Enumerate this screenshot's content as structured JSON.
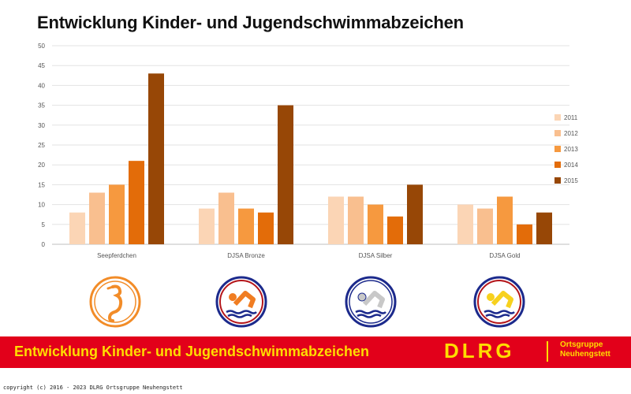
{
  "title": "Entwicklung Kinder- und Jugendschwimmabzeichen",
  "chart_data": {
    "type": "bar",
    "title": "Entwicklung Kinder- und Jugendschwimmabzeichen",
    "categories": [
      "Seepferdchen",
      "DJSA Bronze",
      "DJSA Silber",
      "DJSA Gold"
    ],
    "series": [
      {
        "name": "2011",
        "color": "#fbd5b5",
        "values": [
          8,
          9,
          12,
          10
        ]
      },
      {
        "name": "2012",
        "color": "#f9bf8f",
        "values": [
          13,
          13,
          12,
          9
        ]
      },
      {
        "name": "2013",
        "color": "#f6993f",
        "values": [
          15,
          9,
          10,
          12
        ]
      },
      {
        "name": "2014",
        "color": "#e36c09",
        "values": [
          21,
          8,
          7,
          5
        ]
      },
      {
        "name": "2015",
        "color": "#974706",
        "values": [
          43,
          35,
          15,
          8
        ]
      }
    ],
    "ylim": [
      0,
      50
    ],
    "yticks": [
      0,
      5,
      10,
      15,
      20,
      25,
      30,
      35,
      40,
      45,
      50
    ],
    "grid": true,
    "legend": "right"
  },
  "badges": [
    {
      "name": "Seepferdchen",
      "icon": "seahorse-badge-icon",
      "ring": "#f28c28",
      "figure": "#f28c28"
    },
    {
      "name": "DJSA Bronze",
      "icon": "swimmer-bronze-badge-icon",
      "ring": "#b4161b",
      "figure": "#f07d22"
    },
    {
      "name": "DJSA Silber",
      "icon": "swimmer-silver-badge-icon",
      "ring": "#1c2a8c",
      "figure": "#c8c8c8"
    },
    {
      "name": "DJSA Gold",
      "icon": "swimmer-gold-badge-icon",
      "ring": "#b4161b",
      "figure": "#f7d11e"
    }
  ],
  "banner": {
    "text": "Entwicklung Kinder- und Jugendschwimmabzeichen",
    "logo": "DLRG",
    "group_line1": "Ortsgruppe",
    "group_line2": "Neuhengstett",
    "background": "#e2001a",
    "text_color": "#ffdd00"
  },
  "footer": "copyright (c) 2016 - 2023 DLRG Ortsgruppe Neuhengstett"
}
